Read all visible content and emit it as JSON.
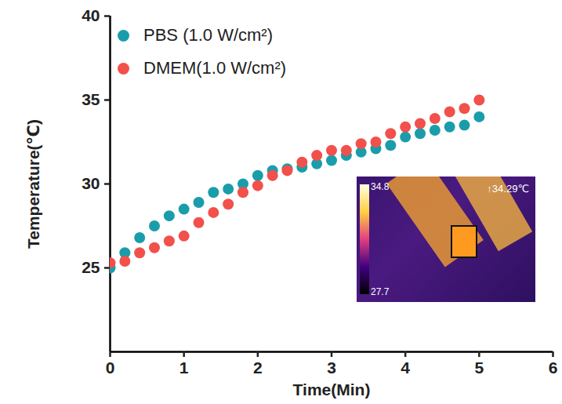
{
  "chart_data": {
    "type": "scatter",
    "x_label": "Time(Min)",
    "y_label": "Temperature(℃)",
    "x": [
      0,
      0.2,
      0.4,
      0.6,
      0.8,
      1.0,
      1.2,
      1.4,
      1.6,
      1.8,
      2.0,
      2.2,
      2.4,
      2.6,
      2.8,
      3.0,
      3.2,
      3.4,
      3.6,
      3.8,
      4.0,
      4.2,
      4.4,
      4.6,
      4.8,
      5.0
    ],
    "series": [
      {
        "name": "PBS (1.0 W/cm²)",
        "color": "#1a9daa",
        "marker": "circle",
        "values": [
          25.0,
          25.9,
          26.8,
          27.5,
          28.1,
          28.5,
          28.9,
          29.5,
          29.7,
          30.0,
          30.5,
          30.8,
          30.9,
          31.0,
          31.2,
          31.4,
          31.7,
          31.9,
          32.1,
          32.3,
          32.8,
          33.0,
          33.2,
          33.4,
          33.5,
          34.0
        ]
      },
      {
        "name": "DMEM(1.0 W/cm²)",
        "color": "#f2504b",
        "marker": "circle",
        "values": [
          25.3,
          25.4,
          25.9,
          26.2,
          26.6,
          26.9,
          27.7,
          28.3,
          28.8,
          29.5,
          29.9,
          30.5,
          30.8,
          31.3,
          31.7,
          32.0,
          32.0,
          32.4,
          32.5,
          33.0,
          33.4,
          33.6,
          33.9,
          34.3,
          34.5,
          35.0
        ]
      }
    ],
    "xlim": [
      0,
      6
    ],
    "xticks": [
      0,
      1,
      2,
      3,
      4,
      5,
      6
    ],
    "ylim": [
      20,
      40
    ],
    "yticks": [
      25,
      30,
      35,
      40
    ],
    "legend": "upper left",
    "grid": false,
    "annotations": [
      "↑34.29℃",
      "34.8",
      "27.7"
    ]
  }
}
